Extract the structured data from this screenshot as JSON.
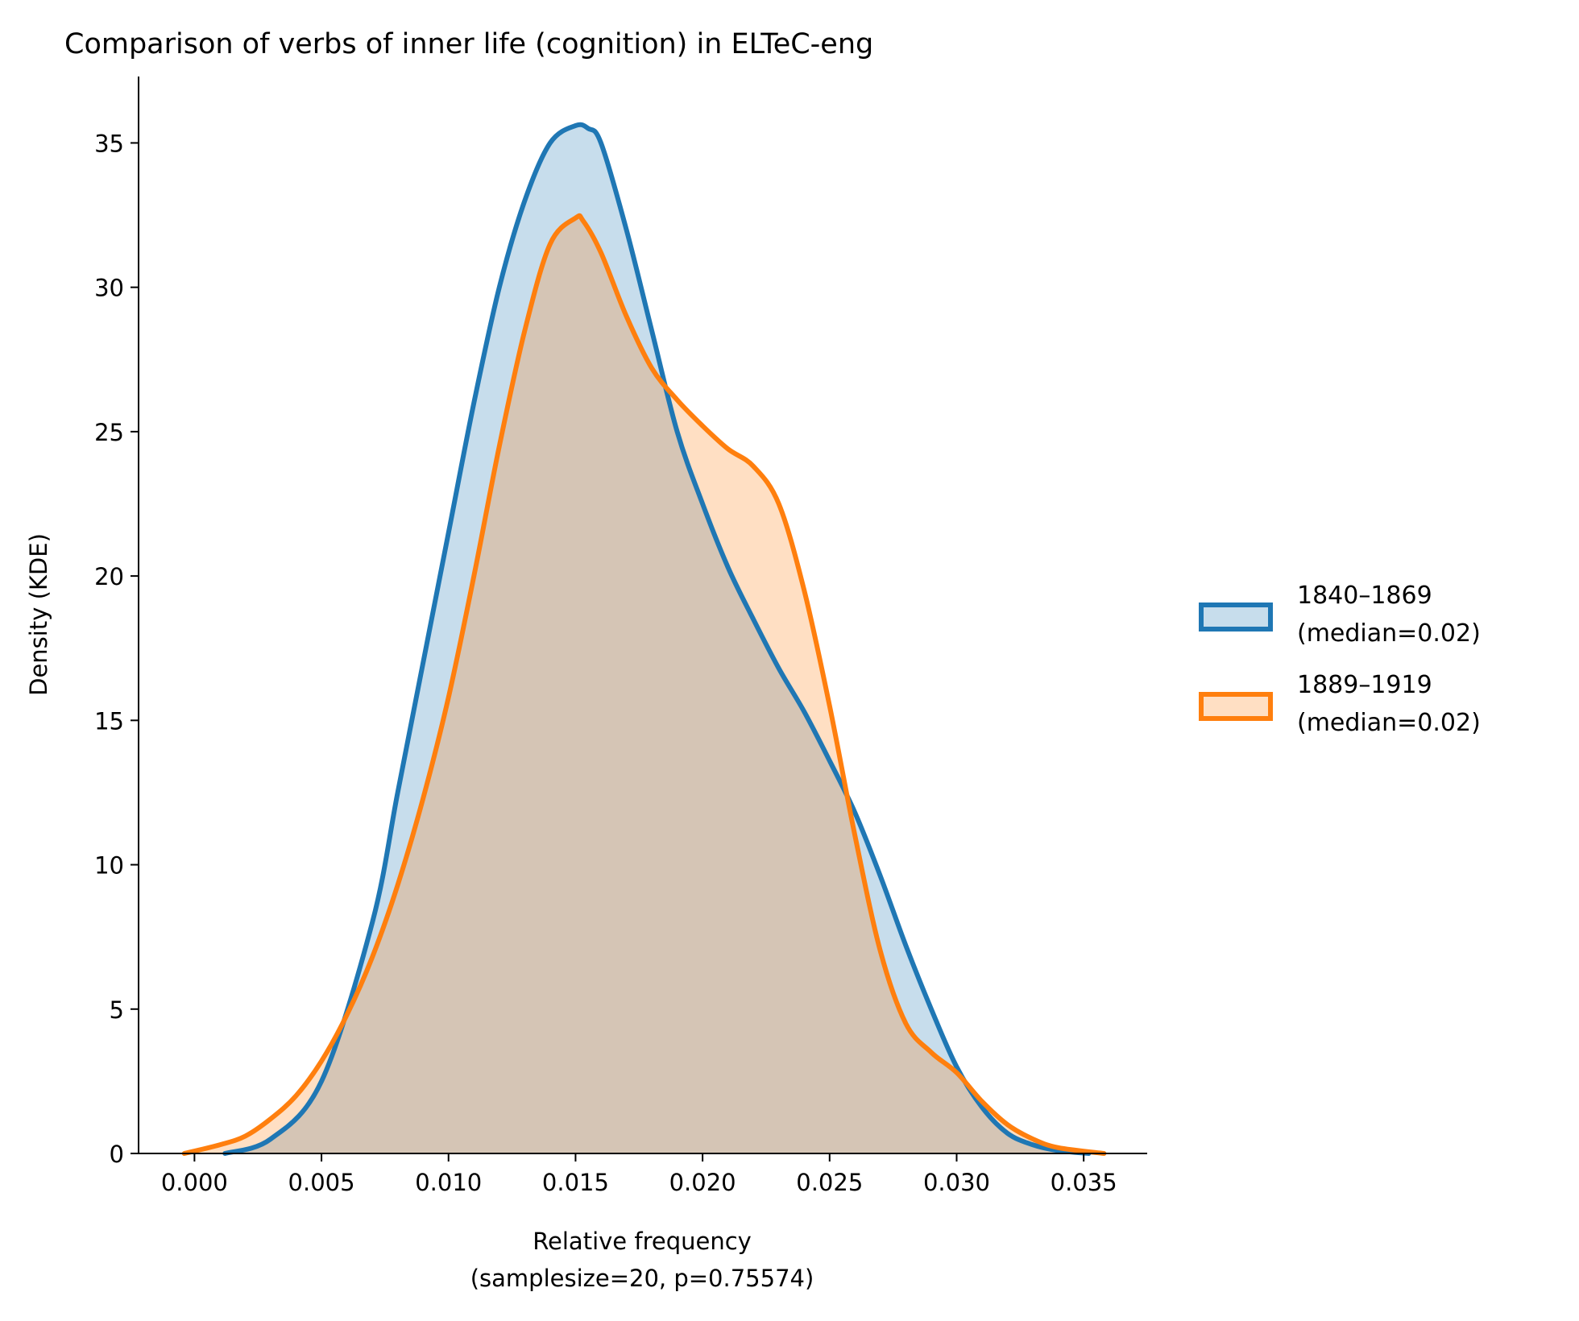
{
  "chart_data": {
    "type": "area",
    "title": "Comparison of verbs of inner life (cognition) in ELTeC-eng",
    "xlabel_line1": "Relative frequency",
    "xlabel_line2": "(samplesize=20, p=0.75574)",
    "ylabel": "Density (KDE)",
    "xlim": [
      -0.0022,
      0.0375
    ],
    "ylim": [
      0,
      37.3
    ],
    "grid": false,
    "legend_position": "right",
    "x_ticks": [
      0.0,
      0.005,
      0.01,
      0.015,
      0.02,
      0.025,
      0.03,
      0.035
    ],
    "x_tick_labels": [
      "0.000",
      "0.005",
      "0.010",
      "0.015",
      "0.020",
      "0.025",
      "0.030",
      "0.035"
    ],
    "y_ticks": [
      0,
      5,
      10,
      15,
      20,
      25,
      30,
      35
    ],
    "y_tick_labels": [
      "0",
      "5",
      "10",
      "15",
      "20",
      "25",
      "30",
      "35"
    ],
    "series": [
      {
        "label_line1": "1840–1869",
        "label_line2": "(median=0.02)",
        "color": "#1f77b4",
        "x": [
          0.0012,
          0.003,
          0.005,
          0.007,
          0.008,
          0.009,
          0.01,
          0.011,
          0.012,
          0.013,
          0.014,
          0.015,
          0.0155,
          0.016,
          0.017,
          0.018,
          0.019,
          0.02,
          0.021,
          0.022,
          0.023,
          0.024,
          0.025,
          0.026,
          0.027,
          0.028,
          0.029,
          0.03,
          0.031,
          0.032,
          0.033,
          0.034,
          0.0352
        ],
        "y": [
          0.0,
          0.5,
          2.5,
          8.0,
          12.5,
          17.0,
          21.5,
          26.0,
          30.0,
          33.0,
          35.0,
          35.6,
          35.5,
          35.0,
          32.0,
          28.5,
          25.0,
          22.5,
          20.3,
          18.5,
          16.8,
          15.3,
          13.6,
          11.8,
          9.6,
          7.2,
          5.0,
          3.0,
          1.6,
          0.7,
          0.3,
          0.1,
          0.0
        ]
      },
      {
        "label_line1": "1889–1919",
        "label_line2": "(median=0.02)",
        "color": "#ff7f0e",
        "x": [
          -0.0004,
          0.001,
          0.002,
          0.003,
          0.004,
          0.005,
          0.006,
          0.007,
          0.008,
          0.009,
          0.01,
          0.011,
          0.012,
          0.013,
          0.014,
          0.015,
          0.0153,
          0.016,
          0.017,
          0.018,
          0.019,
          0.02,
          0.021,
          0.022,
          0.023,
          0.024,
          0.025,
          0.026,
          0.027,
          0.028,
          0.029,
          0.03,
          0.031,
          0.032,
          0.033,
          0.034,
          0.0358
        ],
        "y": [
          0.0,
          0.3,
          0.6,
          1.2,
          2.0,
          3.2,
          4.8,
          6.8,
          9.3,
          12.3,
          15.8,
          20.0,
          24.5,
          28.5,
          31.5,
          32.4,
          32.3,
          31.2,
          29.0,
          27.2,
          26.1,
          25.2,
          24.4,
          23.8,
          22.5,
          19.5,
          15.5,
          11.0,
          7.0,
          4.5,
          3.5,
          2.8,
          1.8,
          1.0,
          0.5,
          0.2,
          0.0
        ]
      }
    ]
  }
}
